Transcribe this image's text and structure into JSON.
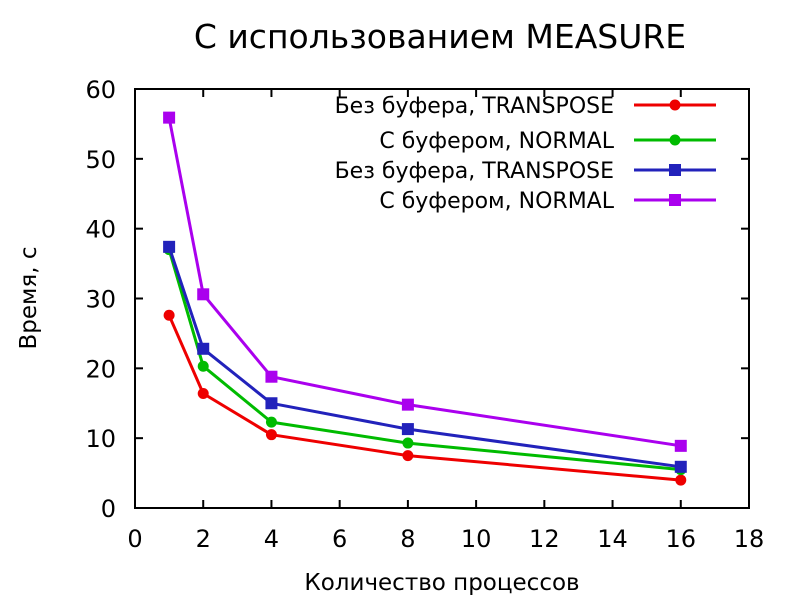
{
  "chart_data": {
    "type": "line",
    "title": "С использованием MEASURE",
    "xlabel": "Количество процессов",
    "ylabel": "Время, с",
    "xlim": [
      0,
      18
    ],
    "ylim": [
      0,
      60
    ],
    "xticks": [
      0,
      2,
      4,
      6,
      8,
      10,
      12,
      14,
      16,
      18
    ],
    "yticks": [
      0,
      10,
      20,
      30,
      40,
      50,
      60
    ],
    "grid": false,
    "legend_position": "top-right",
    "x": [
      1,
      2,
      4,
      8,
      16
    ],
    "series": [
      {
        "name": "Без буфера, TRANSPOSE",
        "color": "#ee0000",
        "marker": "circle",
        "values": [
          27.6,
          16.4,
          10.5,
          7.5,
          4.0
        ]
      },
      {
        "name": "С буфером, NORMAL",
        "color": "#00bb00",
        "marker": "circle",
        "values": [
          37.0,
          20.3,
          12.3,
          9.3,
          5.5
        ]
      },
      {
        "name": "Без буфера, TRANSPOSE",
        "color": "#2222bb",
        "marker": "square",
        "values": [
          37.4,
          22.8,
          15.0,
          11.3,
          5.9
        ]
      },
      {
        "name": "С буфером, NORMAL",
        "color": "#aa00ee",
        "marker": "square",
        "values": [
          55.9,
          30.6,
          18.8,
          14.8,
          8.9
        ]
      }
    ]
  }
}
